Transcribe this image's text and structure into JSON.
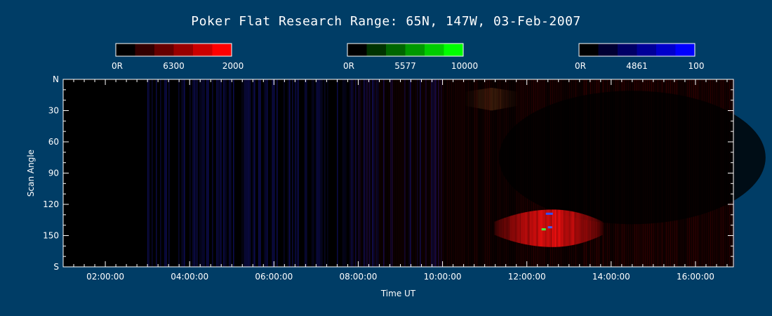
{
  "chart_data": {
    "type": "heatmap",
    "title": "Poker Flat Research Range: 65N, 147W, 03-Feb-2007",
    "xlabel": "Time UT",
    "ylabel": "Scan Angle",
    "x_ticks": [
      "02:00:00",
      "04:00:00",
      "06:00:00",
      "08:00:00",
      "10:00:00",
      "12:00:00",
      "14:00:00",
      "16:00:00"
    ],
    "x_range_hours": [
      1.0,
      16.9
    ],
    "y_ticks": [
      "N",
      "30",
      "60",
      "90",
      "120",
      "150",
      "S"
    ],
    "y_range_deg": [
      0,
      180
    ],
    "channels": [
      {
        "name": "6300",
        "min_label": "0R",
        "max_label": "2000",
        "color": "#ff0000",
        "scale": [
          "#000000",
          "#330000",
          "#660000",
          "#990000",
          "#cc0000",
          "#ff0000"
        ]
      },
      {
        "name": "5577",
        "min_label": "0R",
        "max_label": "10000",
        "color": "#00ff00",
        "scale": [
          "#000000",
          "#003300",
          "#006600",
          "#009900",
          "#00cc00",
          "#00ff00"
        ]
      },
      {
        "name": "4861",
        "min_label": "0R",
        "max_label": "100",
        "color": "#0000ff",
        "scale": [
          "#000000",
          "#000033",
          "#000066",
          "#000099",
          "#0000cc",
          "#0000ff"
        ]
      }
    ],
    "features": [
      {
        "channel": "blue",
        "kind": "noise",
        "time_range_h": [
          3.0,
          10.0
        ],
        "level": "low"
      },
      {
        "channel": "red",
        "kind": "background",
        "time_range_h": [
          7.8,
          16.9
        ],
        "level": "low"
      },
      {
        "channel": "red",
        "kind": "arc",
        "time_range_h": [
          11.2,
          13.8
        ],
        "scan_deg": [
          128,
          158
        ],
        "level": "high"
      },
      {
        "channel": "red",
        "kind": "band",
        "time_range_h": [
          10.5,
          11.8
        ],
        "scan_deg": [
          8,
          30
        ],
        "level": "moderate"
      }
    ],
    "grid": false
  }
}
